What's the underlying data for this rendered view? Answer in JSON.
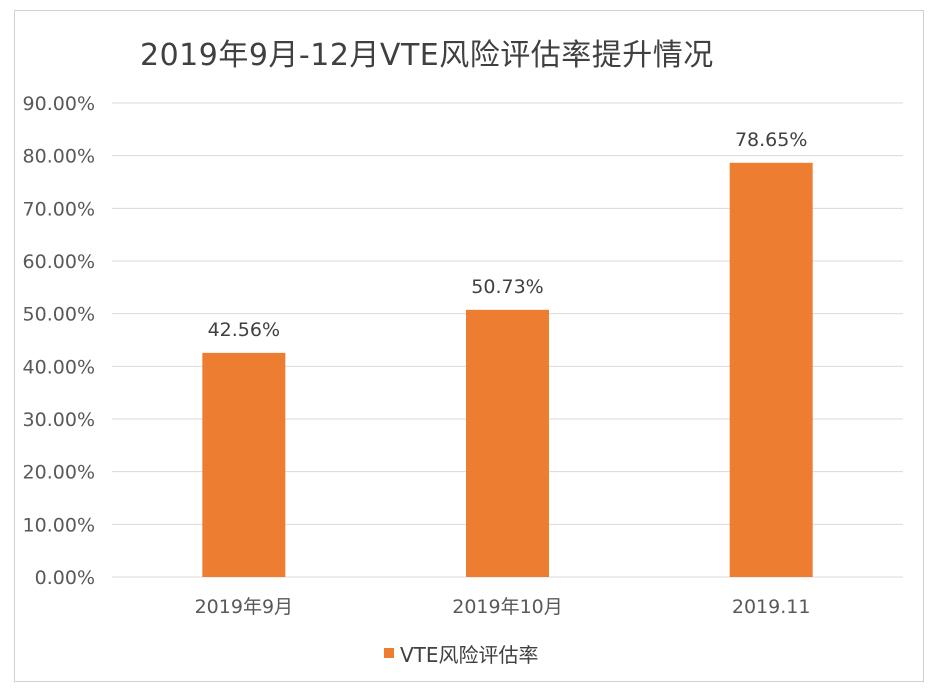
{
  "chart_data": {
    "type": "bar",
    "title": "2019年9月-12月VTE风险评估率提升情况",
    "categories": [
      "2019年9月",
      "2019年10月",
      "2019.11"
    ],
    "series": [
      {
        "name": "VTE风险评估率",
        "values": [
          42.56,
          50.73,
          78.65
        ],
        "color": "#ED7D31"
      }
    ],
    "data_labels": [
      "42.56%",
      "50.73%",
      "78.65%"
    ],
    "ylim": [
      0,
      90
    ],
    "yticks": [
      "0.00%",
      "10.00%",
      "20.00%",
      "30.00%",
      "40.00%",
      "50.00%",
      "60.00%",
      "70.00%",
      "80.00%",
      "90.00%"
    ],
    "grid": true,
    "legend": "bottom"
  }
}
